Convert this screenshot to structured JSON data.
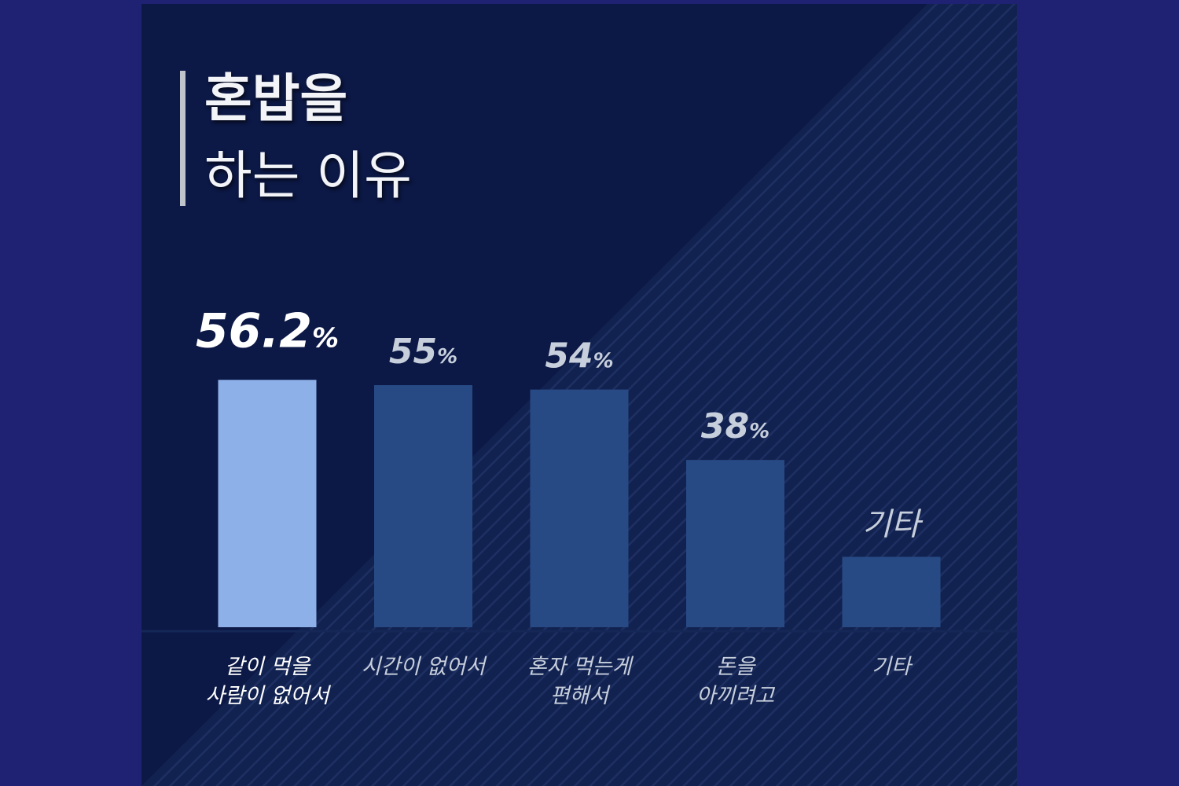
{
  "title": [
    "혼밥을",
    "하는 이유"
  ],
  "colors": {
    "page_bg": "#1f2272",
    "panel_bg": "#0c1845",
    "bar_highlight": "#8eb0e9",
    "bar": "#274a85",
    "label_highlight": "#ffffff",
    "label": "#c7cfdc"
  },
  "chart_data": {
    "type": "bar",
    "title": "혼밥을 하는 이유",
    "categories": [
      "같이 먹을\n사람이 없어서",
      "시간이 없어서",
      "혼자 먹는게\n편해서",
      "돈을\n아끼려고",
      "기타"
    ],
    "values": [
      56.2,
      55,
      54,
      38,
      16
    ],
    "value_labels": [
      "56.2%",
      "55%",
      "54%",
      "38%",
      "기타"
    ],
    "highlight_index": 0,
    "ylim": [
      0,
      60
    ],
    "xlabel": "",
    "ylabel": "",
    "grid": false,
    "legend": "none"
  }
}
